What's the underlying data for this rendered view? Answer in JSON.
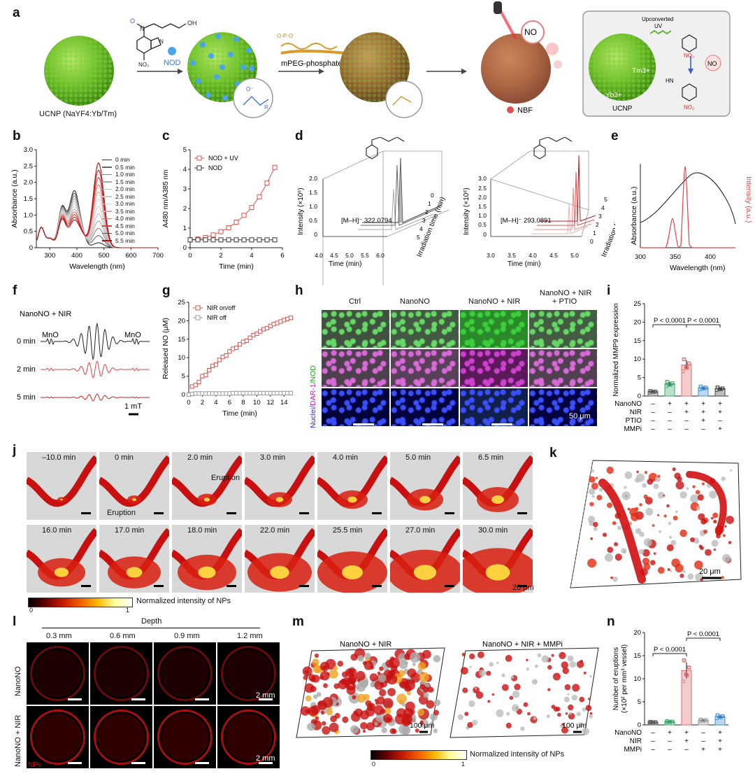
{
  "panel_letters": [
    "a",
    "b",
    "c",
    "d",
    "e",
    "f",
    "g",
    "h",
    "i",
    "j",
    "k",
    "l",
    "m",
    "n"
  ],
  "panel_a": {
    "ucnp_label": "UCNP (NaYF4:Yb/Tm)",
    "nod": "NOD",
    "mpeg": "mPEG-phosphate",
    "no_label": "NO",
    "nbf": "NBF",
    "upconverted": "Upconverted",
    "uv": "UV",
    "yb": "Yb3+",
    "tm": "Tm3+",
    "ucnp_box": "UCNP",
    "no_small": "NO"
  },
  "chart_data": [
    {
      "panel": "b",
      "type": "line",
      "xlabel": "Wavelength (nm)",
      "ylabel": "Absorbance (a.u.)",
      "xlim": [
        250,
        700
      ],
      "ylim": [
        0,
        3.0
      ],
      "xticks": [
        300,
        400,
        500,
        600,
        700
      ],
      "yticks": [
        0,
        0.5,
        1.0,
        1.5,
        2.0,
        2.5,
        3.0
      ],
      "legend": [
        "0 min",
        "0.5 min",
        "1.0 min",
        "1.5 min",
        "2.0 min",
        "2.5 min",
        "3.0 min",
        "3.5 min",
        "4.0 min",
        "4.5 min",
        "5.0 min",
        "5.5 min"
      ],
      "legend_colors": [
        "#333333",
        "#666666",
        "#888888",
        "#a8a8a8",
        "#c0c0c0",
        "#cccccc",
        "#d6d6d6",
        "#e0a8a8",
        "#d87878",
        "#cc4848",
        "#c02828",
        "#b01010"
      ],
      "series_peaks": {
        "x": [
          265,
          302,
          345,
          385,
          415,
          480,
          560
        ],
        "note": "visible absorption bands"
      }
    },
    {
      "panel": "c",
      "type": "line",
      "xlabel": "Time (min)",
      "ylabel": "A480 nm/A385 nm",
      "xlim": [
        0,
        6
      ],
      "ylim": [
        0,
        5
      ],
      "xticks": [
        0,
        2,
        4,
        6
      ],
      "yticks": [
        0,
        1,
        2,
        3,
        4,
        5
      ],
      "legend_loc": "top-left",
      "series": [
        {
          "name": "NOD + UV",
          "color": "#d9534f",
          "x": [
            0,
            0.5,
            1,
            1.5,
            2,
            2.5,
            3,
            3.5,
            4,
            4.5,
            5,
            5.5
          ],
          "y": [
            0.4,
            0.44,
            0.52,
            0.65,
            0.82,
            1.02,
            1.3,
            1.65,
            2.05,
            2.6,
            3.3,
            4.1
          ]
        },
        {
          "name": "NOD",
          "color": "#333333",
          "x": [
            0,
            0.5,
            1,
            1.5,
            2,
            2.5,
            3,
            3.5,
            4,
            4.5,
            5,
            5.5
          ],
          "y": [
            0.4,
            0.4,
            0.4,
            0.4,
            0.4,
            0.4,
            0.4,
            0.4,
            0.4,
            0.4,
            0.4,
            0.4
          ]
        }
      ]
    },
    {
      "panel": "d-left",
      "type": "line",
      "xlabel": "Time (min)",
      "ylabel": "Intensity (×10^6)",
      "zlabel": "Irradiation time (min)",
      "xlim": [
        4.0,
        6.0
      ],
      "ylim": [
        0,
        2.0
      ],
      "xticks": [
        4.0,
        4.5,
        5.0,
        5.5,
        6.0
      ],
      "yticks": [
        0,
        0.5,
        1.0,
        1.5,
        2.0
      ],
      "zticks": [
        0,
        1,
        2,
        3,
        4,
        5
      ],
      "annotation": "[M–H]⁻ 322.0794"
    },
    {
      "panel": "d-right",
      "type": "line",
      "xlabel": "Time (min)",
      "ylabel": "Intensity (×10^6)",
      "zlabel": "Irradiation time (min)",
      "xlim": [
        3.0,
        5.0
      ],
      "ylim": [
        0,
        3.0
      ],
      "xticks": [
        3.0,
        3.5,
        4.0,
        4.5,
        5.0
      ],
      "yticks": [
        0,
        0.5,
        1.0,
        1.5,
        2.0,
        2.5,
        3.0
      ],
      "zticks": [
        0,
        1,
        2,
        3,
        4,
        5
      ],
      "annotation": "[M–H]⁻ 293.0891"
    },
    {
      "panel": "e",
      "type": "line",
      "xlabel": "Wavelength (nm)",
      "ylabel": "Absorbance (a.u.)",
      "ylabel_right": "Intensity (a.u.)",
      "xlim": [
        300,
        430
      ],
      "xticks": [
        300,
        350,
        400
      ]
    },
    {
      "panel": "f",
      "type": "line",
      "title": "NanoNO + NIR",
      "rows": [
        "0 min",
        "2 min",
        "5 min"
      ],
      "markers": [
        "MnO",
        "MnO"
      ],
      "scalebar": "1 mT"
    },
    {
      "panel": "g",
      "type": "line",
      "xlabel": "Time (min)",
      "ylabel": "Released NO (μM)",
      "xlim": [
        0,
        15
      ],
      "ylim": [
        0,
        25
      ],
      "xticks": [
        0,
        2,
        4,
        6,
        8,
        10,
        12,
        14
      ],
      "yticks": [
        0,
        5,
        10,
        15,
        20,
        25
      ],
      "legend_loc": "top-left",
      "series": [
        {
          "name": "NIR on/off",
          "color": "#d9534f",
          "x": [
            0.5,
            1,
            1.5,
            2,
            2.5,
            3,
            3.5,
            4,
            4.5,
            5,
            5.5,
            6,
            6.5,
            7,
            7.5,
            8,
            8.5,
            9,
            9.5,
            10,
            10.5,
            11,
            11.5,
            12,
            12.5,
            13,
            13.5,
            14,
            14.5,
            15
          ],
          "y": [
            2.2,
            2.6,
            3.4,
            5,
            5.3,
            6.6,
            7.8,
            8.1,
            9.4,
            10.2,
            10.6,
            11.7,
            12.4,
            12.7,
            13.6,
            14.3,
            14.6,
            15.4,
            16.1,
            16.5,
            17.1,
            17.7,
            18.0,
            18.6,
            19.1,
            19.4,
            19.8,
            20.2,
            20.5,
            20.8
          ]
        },
        {
          "name": "NIR off",
          "color": "#999999",
          "x": [
            0,
            0.5,
            1,
            1.5,
            2,
            2.5,
            3,
            3.5,
            4,
            4.5,
            5,
            5.5,
            6,
            6.5,
            7,
            7.5,
            8,
            8.5,
            9,
            9.5,
            10,
            10.5,
            11,
            11.5,
            12,
            12.5,
            13,
            13.5,
            14,
            14.5,
            15
          ],
          "y": [
            0,
            0.2,
            0.3,
            0.3,
            0.3,
            0.3,
            0.3,
            0.3,
            0.3,
            0.3,
            0.3,
            0.3,
            0.3,
            0.4,
            0.4,
            0.4,
            0.4,
            0.4,
            0.4,
            0.4,
            0.4,
            0.4,
            0.4,
            0.4,
            0.4,
            0.4,
            0.4,
            0.4,
            0.4,
            0.4,
            0.4
          ]
        }
      ]
    },
    {
      "panel": "i",
      "type": "bar",
      "ylabel": "Normalized MMP9 expression",
      "ylim": [
        0,
        25
      ],
      "yticks": [
        0,
        5,
        10,
        15,
        20,
        25
      ],
      "categories": [
        "1",
        "2",
        "3",
        "4",
        "5"
      ],
      "values": [
        1.2,
        3.3,
        8.4,
        2.2,
        2.0
      ],
      "colors": [
        "#555555",
        "#3aa86b",
        "#e06a6a",
        "#3d8fd4",
        "#444444"
      ],
      "rows": {
        "NanoNO": [
          "–",
          "+",
          "+",
          "+",
          "+"
        ],
        "NIR": [
          "–",
          "–",
          "+",
          "+",
          "+"
        ],
        "PTIO": [
          "–",
          "–",
          "–",
          "+",
          "–"
        ],
        "MMPi": [
          "–",
          "–",
          "–",
          "–",
          "+"
        ]
      },
      "annotations": [
        "P < 0.0001",
        "P < 0.0001"
      ]
    },
    {
      "panel": "n",
      "type": "bar",
      "ylabel": "Number of eruptions (×10² per mm³ vessel)",
      "ylim": [
        0,
        20
      ],
      "yticks": [
        0,
        5,
        10,
        15,
        20
      ],
      "categories": [
        "1",
        "2",
        "3",
        "4",
        "5"
      ],
      "values": [
        0.6,
        0.7,
        11.8,
        1.0,
        1.8
      ],
      "colors": [
        "#555555",
        "#3aa86b",
        "#e06a6a",
        "#999999",
        "#3d8fd4"
      ],
      "rows": {
        "NanoNO": [
          "–",
          "+",
          "+",
          "–",
          "+"
        ],
        "NIR": [
          "–",
          "–",
          "+",
          "–",
          "+"
        ],
        "MMPi": [
          "–",
          "–",
          "–",
          "+",
          "+"
        ]
      },
      "annotations": [
        "P < 0.0001",
        "P < 0.0001"
      ]
    }
  ],
  "panel_h": {
    "cols": [
      "Ctrl",
      "NanoNO",
      "NanoNO + NIR",
      "NanoNO + NIR\n+ PTIO"
    ],
    "col1": "Ctrl",
    "col2": "NanoNO",
    "col3": "NanoNO + NIR",
    "col4a": "NanoNO + NIR",
    "col4b": "+ PTIO",
    "ylabel_nuclei": "Nuclei/",
    "ylabel_dar": "DAR-1",
    "ylabel_nod": "/NOD",
    "scalebar": "50 μm"
  },
  "panel_j": {
    "row1": [
      "–10.0 min",
      "0 min",
      "2.0 min",
      "3.0 min",
      "4.0 min",
      "5.0 min",
      "6.5 min"
    ],
    "row2": [
      "16.0 min",
      "17.0 min",
      "18.0 min",
      "22.0 min",
      "25.5 min",
      "27.0 min",
      "30.0 min"
    ],
    "eruption1": "Eruption",
    "eruption2": "Eruption",
    "scalebar": "20 μm",
    "colorbar_label": "Normalized intensity of NPs",
    "colorbar_min": "0",
    "colorbar_max": "1"
  },
  "panel_k": {
    "scalebar": "20 μm"
  },
  "panel_l": {
    "depth_title": "Depth",
    "depths": [
      "0.3 mm",
      "0.6 mm",
      "0.9 mm",
      "1.2 mm"
    ],
    "row1": "NanoNO",
    "row2": "NanoNO + NIR",
    "scalebar": "2 mm",
    "nps": "NPs"
  },
  "panel_m": {
    "left": "NanoNO + NIR",
    "right": "NanoNO + NIR + MMPi",
    "scalebar": "100 μm",
    "colorbar_label": "Normalized intensity of NPs",
    "colorbar_min": "0",
    "colorbar_max": "1"
  },
  "row_labels_i": [
    "NanoNO",
    "NIR",
    "PTIO",
    "MMPi"
  ],
  "row_labels_n": [
    "NanoNO",
    "NIR",
    "MMPi"
  ]
}
